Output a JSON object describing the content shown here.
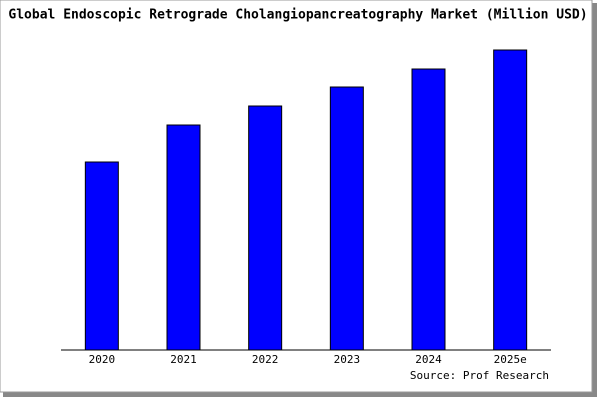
{
  "chart_data": {
    "type": "bar",
    "title": "Global Endoscopic Retrograde Cholangiopancreatography Market (Million USD)",
    "source": "Source: Prof Research",
    "categories": [
      "2020",
      "2021",
      "2022",
      "2023",
      "2024",
      "2025e"
    ],
    "values": [
      188,
      225,
      244,
      263,
      281,
      300
    ],
    "color": "#0000ff",
    "ylim": [
      0,
      305
    ]
  }
}
